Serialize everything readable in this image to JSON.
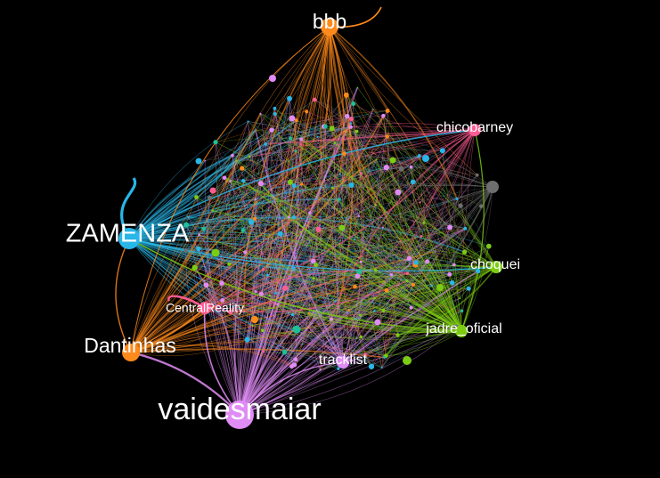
{
  "colors": {
    "background": "#000000",
    "label": "#ffffff",
    "cyan": "#29b6e8",
    "orange": "#ff8a1c",
    "violet": "#e08cf5",
    "green": "#7ccd12",
    "pink": "#ff5c94",
    "gray": "#6e6e6e",
    "teal": "#1fbf9a"
  },
  "graph": {
    "hubs": [
      {
        "id": "vaidesmaiar",
        "label": "vaidesmaiar",
        "color": "violet",
        "size": "xl",
        "label_size": "xl"
      },
      {
        "id": "zamenza",
        "label": "ZAMENZA",
        "color": "cyan",
        "size": "l",
        "label_size": "l"
      },
      {
        "id": "dantinhas",
        "label": "Dantinhas",
        "color": "orange",
        "size": "m",
        "label_size": "m"
      },
      {
        "id": "bbb",
        "label": "bbb",
        "color": "orange",
        "size": "m",
        "label_size": "m"
      },
      {
        "id": "jadre_oficial",
        "label": "jadre_oficial",
        "color": "green",
        "size": "s",
        "label_size": "s"
      },
      {
        "id": "chicobarney",
        "label": "chicobarney",
        "color": "pink",
        "size": "s",
        "label_size": "s"
      },
      {
        "id": "choquei",
        "label": "choquei",
        "color": "green",
        "size": "s",
        "label_size": "s"
      },
      {
        "id": "tracklist",
        "label": "tracklist",
        "color": "violet",
        "size": "s",
        "label_size": "s"
      },
      {
        "id": "centralreality",
        "label": "CentralReality",
        "color": "pink",
        "size": "s",
        "label_size": "xs"
      },
      {
        "id": "unlabeled-gray",
        "label": "",
        "color": "gray",
        "size": "s",
        "label_size": "none"
      }
    ]
  }
}
